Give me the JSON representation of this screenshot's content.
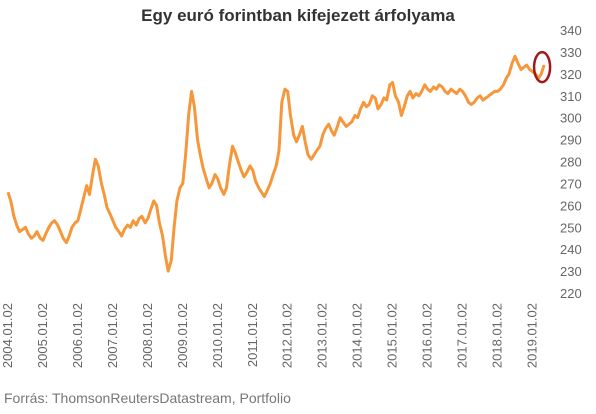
{
  "title": "Egy euró forintban kifejezett árfolyama",
  "source": "Forrás: ThomsonReutersDatastream, Portfolio",
  "colors": {
    "line": "#F5973A",
    "highlight": "#A11A1A",
    "text": "#666666"
  },
  "chart_data": {
    "type": "line",
    "title": "Egy euró forintban kifejezett árfolyama",
    "xlabel": "",
    "ylabel": "",
    "ylim": [
      220,
      340
    ],
    "yticks": [
      220,
      230,
      240,
      250,
      260,
      270,
      280,
      290,
      300,
      310,
      320,
      330,
      340
    ],
    "xlim": [
      2004.0,
      2019.5
    ],
    "xtick_labels": [
      "2004.01.02",
      "2005.01.02",
      "2006.01.02",
      "2007.01.02",
      "2008.01.02",
      "2009.01.02",
      "2010.01.02",
      "2011.01.02",
      "2012.01.02",
      "2013.01.02",
      "2014.01.02",
      "2015.01.02",
      "2016.01.02",
      "2017.01.02",
      "2018.01.02",
      "2019.01.02"
    ],
    "grid": false,
    "legend": "none",
    "annotation": "highlighted latest value (circle)",
    "x": [
      2004.0,
      2004.08,
      2004.17,
      2004.25,
      2004.33,
      2004.42,
      2004.5,
      2004.58,
      2004.67,
      2004.75,
      2004.83,
      2004.92,
      2005.0,
      2005.08,
      2005.17,
      2005.25,
      2005.33,
      2005.42,
      2005.5,
      2005.58,
      2005.67,
      2005.75,
      2005.83,
      2005.92,
      2006.0,
      2006.08,
      2006.17,
      2006.25,
      2006.33,
      2006.42,
      2006.5,
      2006.58,
      2006.67,
      2006.75,
      2006.83,
      2006.92,
      2007.0,
      2007.08,
      2007.17,
      2007.25,
      2007.33,
      2007.42,
      2007.5,
      2007.58,
      2007.67,
      2007.75,
      2007.83,
      2007.92,
      2008.0,
      2008.08,
      2008.17,
      2008.25,
      2008.33,
      2008.42,
      2008.5,
      2008.58,
      2008.67,
      2008.75,
      2008.83,
      2008.92,
      2009.0,
      2009.08,
      2009.17,
      2009.25,
      2009.33,
      2009.42,
      2009.5,
      2009.58,
      2009.67,
      2009.75,
      2009.83,
      2009.92,
      2010.0,
      2010.08,
      2010.17,
      2010.25,
      2010.33,
      2010.42,
      2010.5,
      2010.58,
      2010.67,
      2010.75,
      2010.83,
      2010.92,
      2011.0,
      2011.08,
      2011.17,
      2011.25,
      2011.33,
      2011.42,
      2011.5,
      2011.58,
      2011.67,
      2011.75,
      2011.83,
      2011.92,
      2012.0,
      2012.08,
      2012.17,
      2012.25,
      2012.33,
      2012.42,
      2012.5,
      2012.58,
      2012.67,
      2012.75,
      2012.83,
      2012.92,
      2013.0,
      2013.08,
      2013.17,
      2013.25,
      2013.33,
      2013.42,
      2013.5,
      2013.58,
      2013.67,
      2013.75,
      2013.83,
      2013.92,
      2014.0,
      2014.08,
      2014.17,
      2014.25,
      2014.33,
      2014.42,
      2014.5,
      2014.58,
      2014.67,
      2014.75,
      2014.83,
      2014.92,
      2015.0,
      2015.08,
      2015.17,
      2015.25,
      2015.33,
      2015.42,
      2015.5,
      2015.58,
      2015.67,
      2015.75,
      2015.83,
      2015.92,
      2016.0,
      2016.08,
      2016.17,
      2016.25,
      2016.33,
      2016.42,
      2016.5,
      2016.58,
      2016.67,
      2016.75,
      2016.83,
      2016.92,
      2017.0,
      2017.08,
      2017.17,
      2017.25,
      2017.33,
      2017.42,
      2017.5,
      2017.58,
      2017.67,
      2017.75,
      2017.83,
      2017.92,
      2018.0,
      2018.08,
      2018.17,
      2018.25,
      2018.33,
      2018.42,
      2018.5,
      2018.58,
      2018.67,
      2018.75,
      2018.83,
      2018.92,
      2019.0,
      2019.08,
      2019.17,
      2019.25,
      2019.33
    ],
    "series": [
      {
        "values": [
          266,
          262,
          255,
          251,
          248,
          249,
          250,
          247,
          245,
          246,
          248,
          245,
          244,
          247,
          250,
          252,
          253,
          251,
          248,
          245,
          243,
          246,
          250,
          252,
          253,
          258,
          264,
          269,
          265,
          274,
          281,
          278,
          270,
          265,
          259,
          256,
          253,
          250,
          248,
          246,
          249,
          251,
          250,
          253,
          251,
          254,
          255,
          252,
          254,
          258,
          262,
          260,
          252,
          246,
          237,
          230,
          235,
          250,
          262,
          268,
          270,
          283,
          302,
          312,
          305,
          290,
          283,
          277,
          272,
          268,
          270,
          274,
          272,
          268,
          265,
          268,
          278,
          287,
          284,
          280,
          276,
          273,
          275,
          278,
          276,
          271,
          268,
          266,
          264,
          267,
          270,
          274,
          278,
          285,
          307,
          313,
          312,
          301,
          292,
          289,
          292,
          296,
          289,
          283,
          281,
          283,
          285,
          287,
          292,
          295,
          297,
          294,
          292,
          296,
          300,
          298,
          296,
          297,
          298,
          301,
          300,
          304,
          307,
          305,
          306,
          310,
          309,
          304,
          306,
          309,
          308,
          315,
          316,
          310,
          307,
          301,
          305,
          310,
          312,
          309,
          311,
          310,
          312,
          315,
          313,
          312,
          314,
          313,
          315,
          314,
          312,
          311,
          313,
          312,
          311,
          313,
          312,
          310,
          307,
          306,
          307,
          309,
          310,
          308,
          309,
          310,
          311,
          312,
          312,
          313,
          315,
          318,
          320,
          325,
          328,
          325,
          322,
          323,
          324,
          322,
          321,
          320,
          318,
          320,
          324
        ]
      }
    ]
  }
}
